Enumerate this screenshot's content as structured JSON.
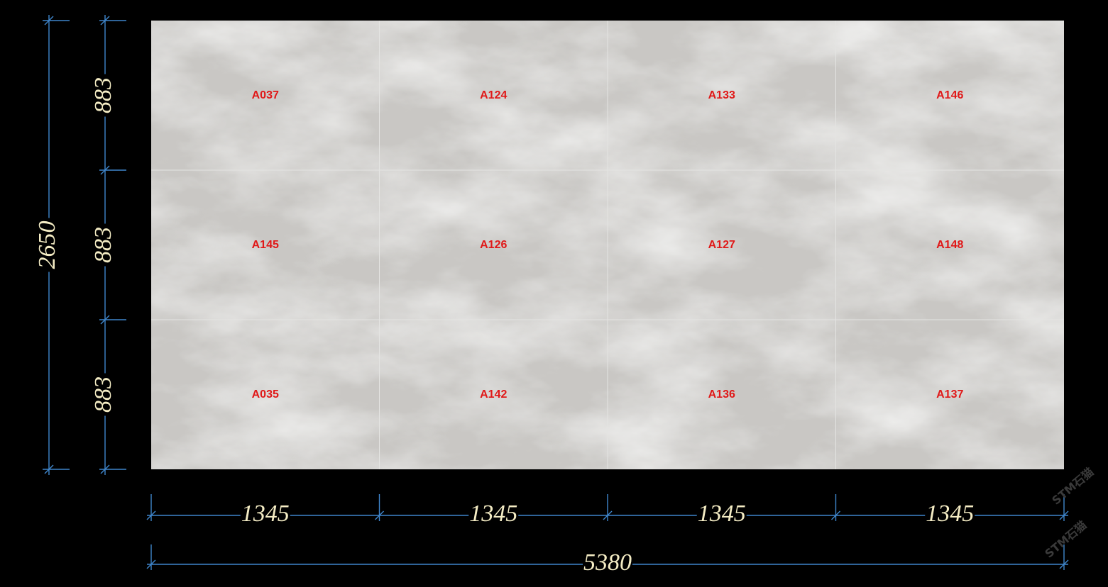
{
  "tiles": [
    [
      "A037",
      "A124",
      "A133",
      "A146"
    ],
    [
      "A145",
      "A126",
      "A127",
      "A148"
    ],
    [
      "A035",
      "A142",
      "A136",
      "A137"
    ]
  ],
  "dimensions": {
    "total_height": 2650,
    "row_heights": [
      883,
      883,
      883
    ],
    "column_widths": [
      1345,
      1345,
      1345,
      1345
    ],
    "total_width": 5380
  },
  "watermark": "STM石猫"
}
